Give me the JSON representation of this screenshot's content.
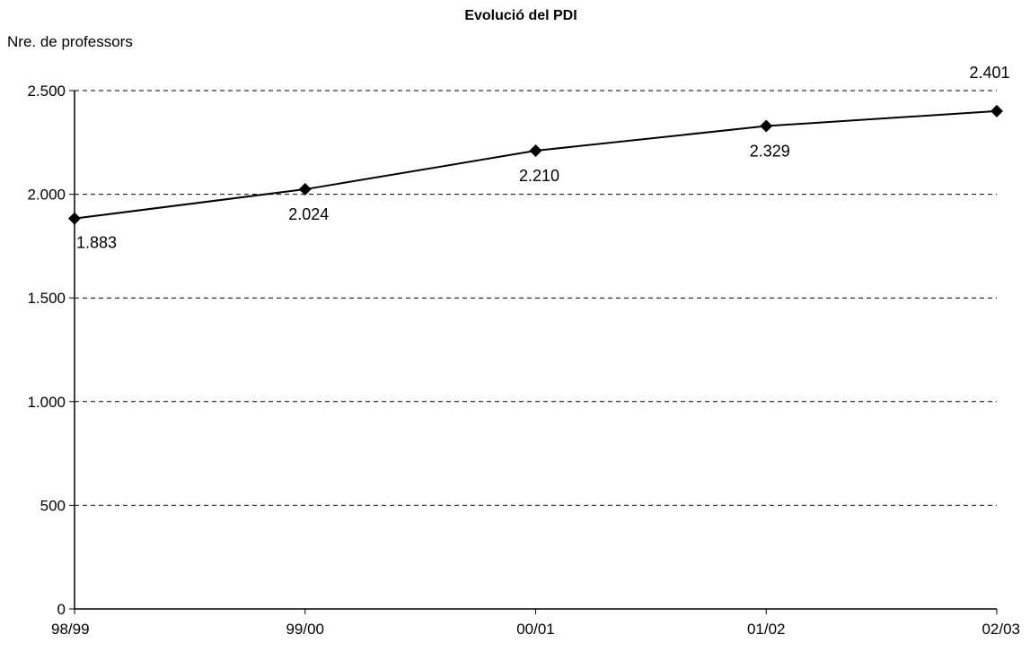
{
  "chart_data": {
    "type": "line",
    "title": "Evolució del PDI",
    "xlabel": "",
    "ylabel": "Nre. de professors",
    "categories": [
      "98/99",
      "99/00",
      "00/01",
      "01/02",
      "02/03"
    ],
    "series": [
      {
        "values": [
          1883,
          2024,
          2210,
          2329,
          2401
        ],
        "data_labels": [
          "1.883",
          "2.024",
          "2.210",
          "2.329",
          "2.401"
        ],
        "marker": "diamond",
        "color": "#000000"
      }
    ],
    "ylim": [
      0,
      2500
    ],
    "yticks": [
      0,
      500,
      1000,
      1500,
      2000,
      2500
    ],
    "ytick_labels": [
      "0",
      "500",
      "1.000",
      "1.500",
      "2.000",
      "2.500"
    ],
    "grid": "horizontal dashed",
    "legend": "none"
  }
}
